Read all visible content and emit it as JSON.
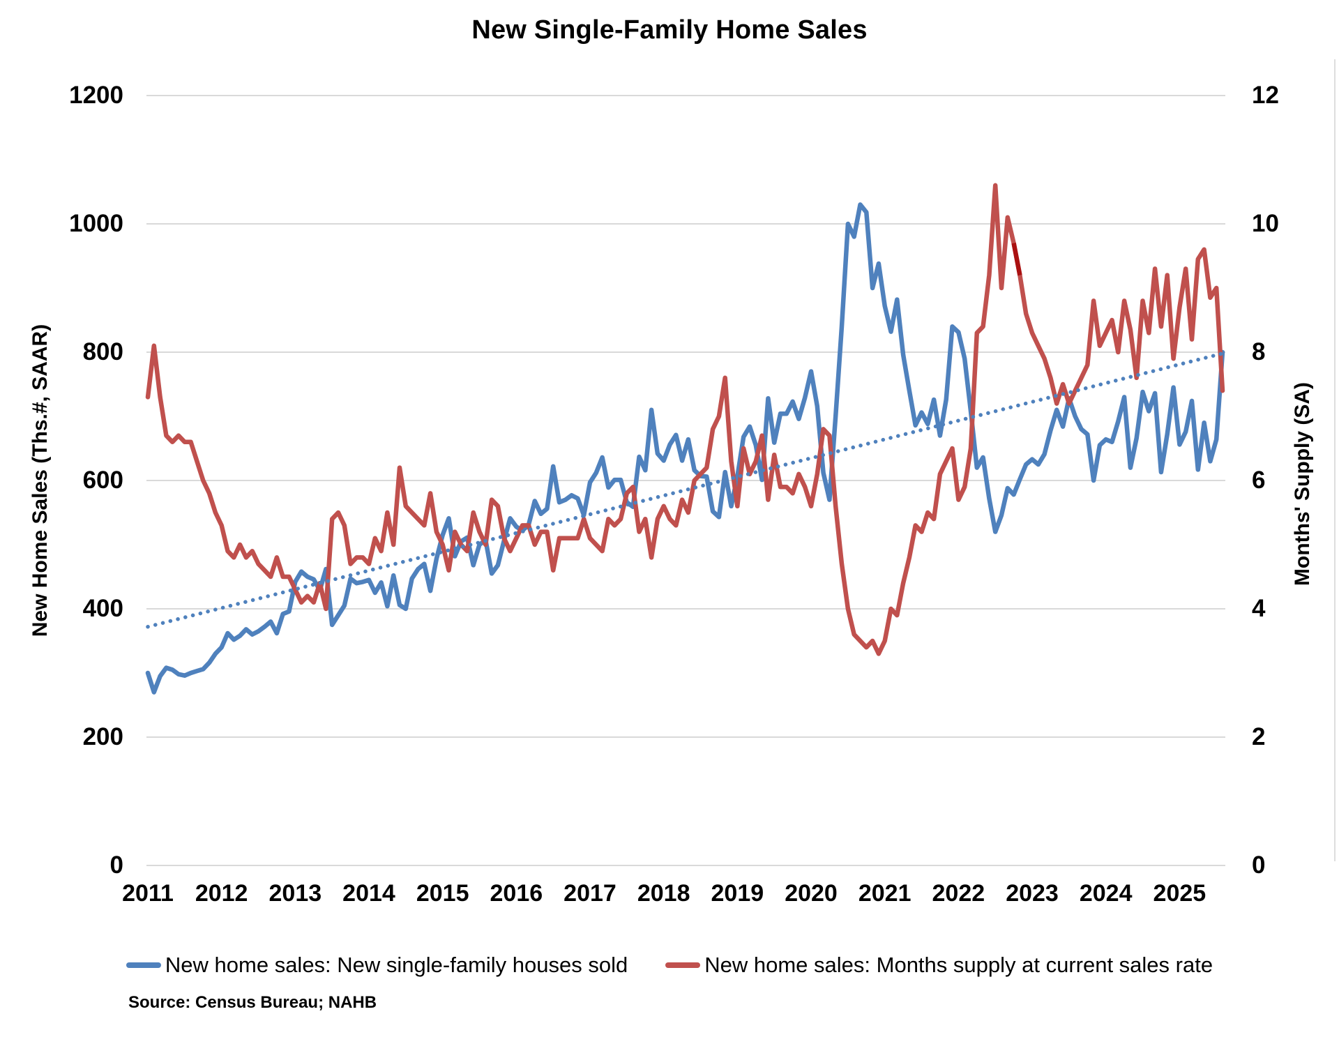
{
  "chart": {
    "title": "New Single-Family Home Sales",
    "left_axis": {
      "title": "New Home Sales (Ths.#, SAAR)",
      "ticks": [
        1200,
        1000,
        800,
        600,
        400,
        200,
        0
      ]
    },
    "right_axis": {
      "title": "Months' Supply (SA)",
      "ticks": [
        12,
        10,
        8,
        6,
        4,
        2,
        0
      ]
    },
    "x_axis": {
      "years": [
        2011,
        2012,
        2013,
        2014,
        2015,
        2016,
        2017,
        2018,
        2019,
        2020,
        2021,
        2022,
        2023,
        2024,
        2025
      ]
    },
    "legend": [
      {
        "label": "New home sales: New single-family houses sold",
        "color": "#4f81bd"
      },
      {
        "label": "New home sales: Months supply at current sales rate",
        "color": "#c0504d"
      }
    ],
    "source": "Source: Census Bureau; NAHB"
  },
  "chart_data": {
    "type": "line",
    "title": "New Single-Family Home Sales",
    "frequency": "monthly",
    "x_start": "2011-01",
    "x_end": "2025-08",
    "grid": true,
    "legend_position": "bottom",
    "ylim_left": [
      0,
      1200
    ],
    "ylim_right": [
      0,
      12
    ],
    "colors": {
      "sales": "#4f81bd",
      "supply": "#c0504d",
      "supply_highlight": "#aa1111",
      "trend": "#4f81bd",
      "grid": "#d9d9d9"
    },
    "series": [
      {
        "name": "New home sales: New single-family houses sold",
        "axis": "left",
        "units": "Ths.#, SAAR",
        "values": [
          300,
          270,
          295,
          308,
          305,
          298,
          296,
          300,
          303,
          306,
          316,
          330,
          340,
          362,
          352,
          358,
          368,
          360,
          365,
          372,
          380,
          362,
          392,
          396,
          442,
          458,
          450,
          446,
          429,
          462,
          375,
          390,
          405,
          447,
          440,
          442,
          445,
          425,
          441,
          404,
          452,
          406,
          400,
          447,
          462,
          470,
          428,
          478,
          515,
          541,
          482,
          505,
          511,
          468,
          500,
          507,
          455,
          468,
          506,
          541,
          528,
          522,
          531,
          568,
          548,
          556,
          622,
          566,
          570,
          577,
          572,
          546,
          597,
          612,
          636,
          589,
          601,
          601,
          566,
          559,
          637,
          616,
          710,
          642,
          631,
          656,
          671,
          631,
          664,
          616,
          607,
          606,
          552,
          543,
          613,
          560,
          606,
          668,
          684,
          655,
          601,
          728,
          659,
          704,
          704,
          723,
          696,
          729,
          770,
          716,
          612,
          570,
          700,
          840,
          1000,
          980,
          1030,
          1018,
          900,
          938,
          872,
          832,
          882,
          796,
          740,
          686,
          706,
          688,
          726,
          670,
          726,
          840,
          831,
          790,
          708,
          620,
          636,
          572,
          520,
          546,
          588,
          578,
          602,
          625,
          633,
          625,
          641,
          678,
          710,
          684,
          728,
          700,
          680,
          672,
          600,
          655,
          664,
          660,
          692,
          730,
          620,
          666,
          738,
          708,
          736,
          613,
          672,
          745,
          656,
          676,
          724,
          617,
          690,
          630,
          664,
          800
        ]
      },
      {
        "name": "New home sales: Months supply at current sales rate",
        "axis": "right",
        "units": "months, SA",
        "values": [
          7.3,
          8.1,
          7.3,
          6.7,
          6.6,
          6.7,
          6.6,
          6.6,
          6.3,
          6.0,
          5.8,
          5.5,
          5.3,
          4.9,
          4.8,
          5.0,
          4.8,
          4.9,
          4.7,
          4.6,
          4.5,
          4.8,
          4.5,
          4.5,
          4.3,
          4.1,
          4.2,
          4.1,
          4.4,
          4.0,
          5.4,
          5.5,
          5.3,
          4.7,
          4.8,
          4.8,
          4.7,
          5.1,
          4.9,
          5.5,
          5.0,
          6.2,
          5.6,
          5.5,
          5.4,
          5.3,
          5.8,
          5.2,
          5.0,
          4.6,
          5.2,
          5.0,
          4.9,
          5.5,
          5.2,
          5.0,
          5.7,
          5.6,
          5.1,
          4.9,
          5.1,
          5.3,
          5.3,
          5.0,
          5.2,
          5.2,
          4.6,
          5.1,
          5.1,
          5.1,
          5.1,
          5.4,
          5.1,
          5.0,
          4.9,
          5.4,
          5.3,
          5.4,
          5.8,
          5.9,
          5.2,
          5.4,
          4.8,
          5.4,
          5.6,
          5.4,
          5.3,
          5.7,
          5.5,
          6.0,
          6.1,
          6.2,
          6.8,
          7.0,
          7.6,
          6.3,
          5.6,
          6.5,
          6.1,
          6.3,
          6.7,
          5.7,
          6.4,
          5.9,
          5.9,
          5.8,
          6.1,
          5.9,
          5.6,
          6.1,
          6.8,
          6.7,
          5.6,
          4.7,
          4.0,
          3.6,
          3.5,
          3.4,
          3.5,
          3.3,
          3.5,
          4.0,
          3.9,
          4.4,
          4.8,
          5.3,
          5.2,
          5.5,
          5.4,
          6.1,
          6.3,
          6.5,
          5.7,
          5.9,
          6.5,
          8.3,
          8.4,
          9.2,
          10.6,
          9.0,
          10.1,
          9.7,
          9.2,
          8.6,
          8.3,
          8.1,
          7.9,
          7.6,
          7.2,
          7.5,
          7.2,
          7.4,
          7.6,
          7.8,
          8.8,
          8.1,
          8.3,
          8.5,
          8.0,
          8.8,
          8.35,
          7.6,
          8.8,
          8.3,
          9.3,
          8.4,
          9.2,
          7.9,
          8.7,
          9.3,
          8.2,
          9.45,
          9.6,
          8.85,
          9.0,
          7.4
        ]
      }
    ],
    "trend_line": {
      "name": "Linear trend of houses sold",
      "axis": "left",
      "style": "dotted",
      "start_value": 372,
      "end_value": 798
    },
    "highlight_segment": {
      "series": "New home sales: Months supply at current sales rate",
      "from_index": 141,
      "to_index": 142,
      "color": "#aa1111"
    }
  }
}
